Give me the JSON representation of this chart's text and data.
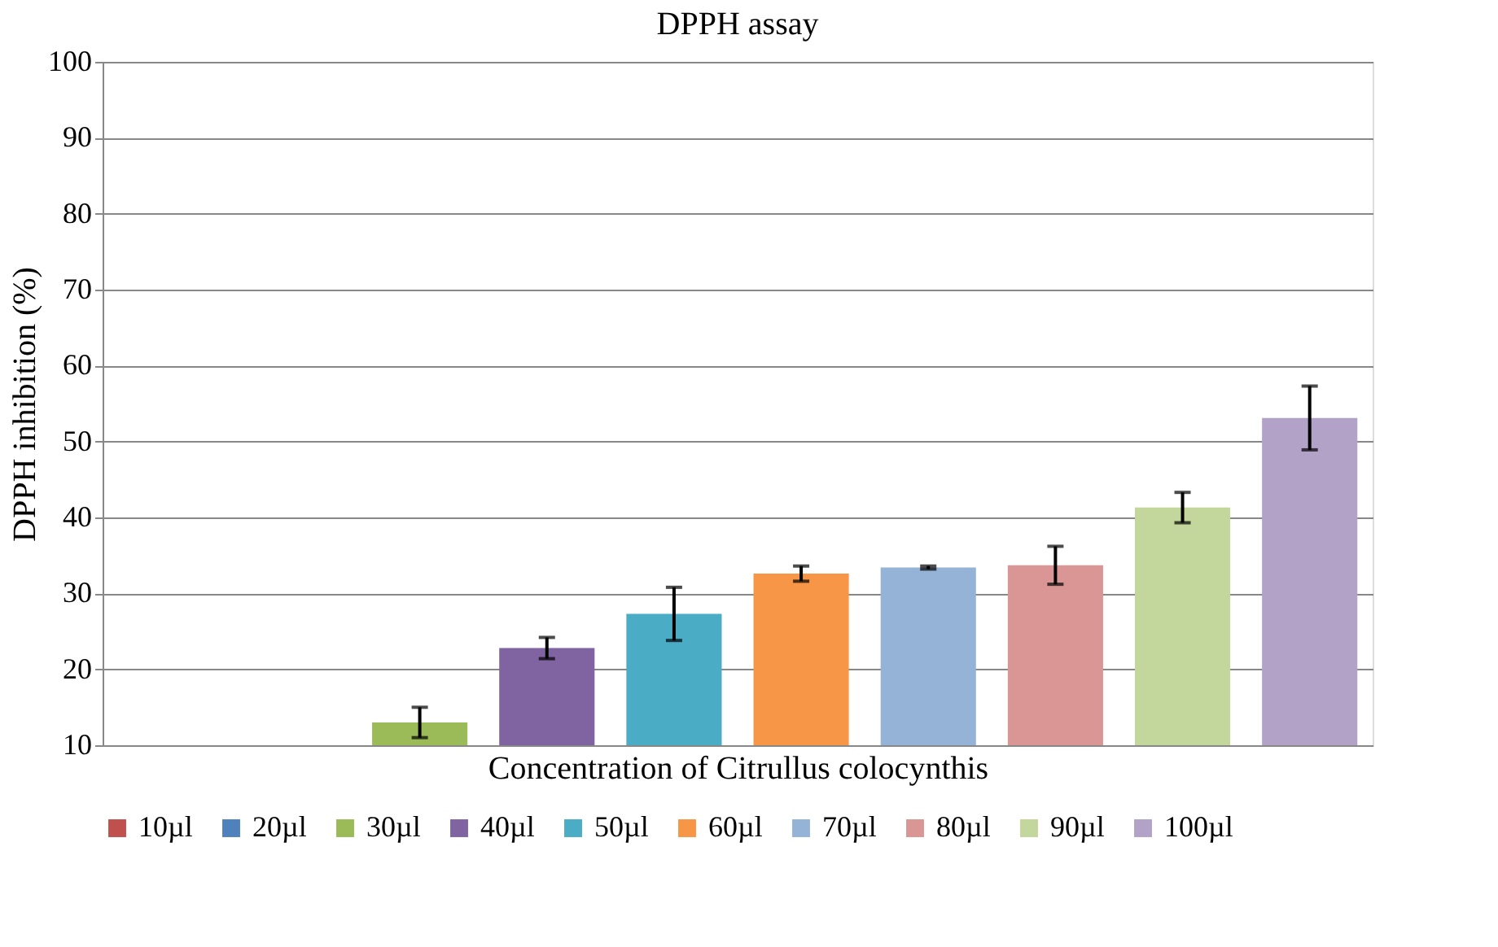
{
  "chart_data": {
    "type": "bar",
    "title": "DPPH assay",
    "xlabel": "Concentration of Citrullus colocynthis",
    "ylabel": "DPPH inhibition (%)",
    "categories": [
      null,
      null,
      null,
      null,
      null,
      null,
      null,
      null,
      null,
      null
    ],
    "series": [
      {
        "name": "10µl",
        "color": "#c0504d",
        "values": [
          null,
          null,
          null,
          null,
          null,
          null,
          null,
          null,
          null,
          null
        ]
      },
      {
        "name": "20µl",
        "color": "#4f81bd",
        "values": [
          null,
          null,
          null,
          null,
          null,
          null,
          null,
          null,
          null,
          null
        ]
      },
      {
        "name": "30µl",
        "color": "#9bbb59",
        "values": [
          null,
          null,
          13.0,
          null,
          null,
          null,
          null,
          null,
          null,
          null
        ],
        "errors": [
          null,
          null,
          2.0,
          null,
          null,
          null,
          null,
          null,
          null,
          null
        ]
      },
      {
        "name": "40µl",
        "color": "#8064a2",
        "values": [
          null,
          null,
          null,
          22.8,
          null,
          null,
          null,
          null,
          null,
          null
        ],
        "errors": [
          null,
          null,
          null,
          1.4,
          null,
          null,
          null,
          null,
          null,
          null
        ]
      },
      {
        "name": "50µl",
        "color": "#4bacc6",
        "values": [
          null,
          null,
          null,
          null,
          27.3,
          null,
          null,
          null,
          null,
          null
        ],
        "errors": [
          null,
          null,
          null,
          null,
          3.5,
          null,
          null,
          null,
          null,
          null
        ]
      },
      {
        "name": "60µl",
        "color": "#f79646",
        "values": [
          null,
          null,
          null,
          null,
          null,
          32.6,
          null,
          null,
          null,
          null
        ],
        "errors": [
          null,
          null,
          null,
          null,
          null,
          1.0,
          null,
          null,
          null,
          null
        ]
      },
      {
        "name": "70µl",
        "color": "#95b3d7",
        "values": [
          null,
          null,
          null,
          null,
          null,
          null,
          33.4,
          null,
          null,
          null
        ],
        "errors": [
          null,
          null,
          null,
          null,
          null,
          null,
          0.2,
          null,
          null,
          null
        ]
      },
      {
        "name": "80µl",
        "color": "#d99694",
        "values": [
          null,
          null,
          null,
          null,
          null,
          null,
          null,
          33.7,
          null,
          null
        ],
        "errors": [
          null,
          null,
          null,
          null,
          null,
          null,
          null,
          2.5,
          null,
          null
        ]
      },
      {
        "name": "90µl",
        "color": "#c3d69b",
        "values": [
          null,
          null,
          null,
          null,
          null,
          null,
          null,
          null,
          41.3,
          null
        ],
        "errors": [
          null,
          null,
          null,
          null,
          null,
          null,
          null,
          null,
          2.0,
          null
        ]
      },
      {
        "name": "100µl",
        "color": "#b2a2c7",
        "values": [
          null,
          null,
          null,
          null,
          null,
          null,
          null,
          null,
          null,
          53.1
        ],
        "errors": [
          null,
          null,
          null,
          null,
          null,
          null,
          null,
          null,
          null,
          4.2
        ]
      }
    ],
    "ylim": [
      10,
      100
    ],
    "yticks": [
      10,
      20,
      30,
      40,
      50,
      60,
      70,
      80,
      90,
      100
    ],
    "grid": "y",
    "legend": "bottom",
    "tick_labels": "y"
  }
}
